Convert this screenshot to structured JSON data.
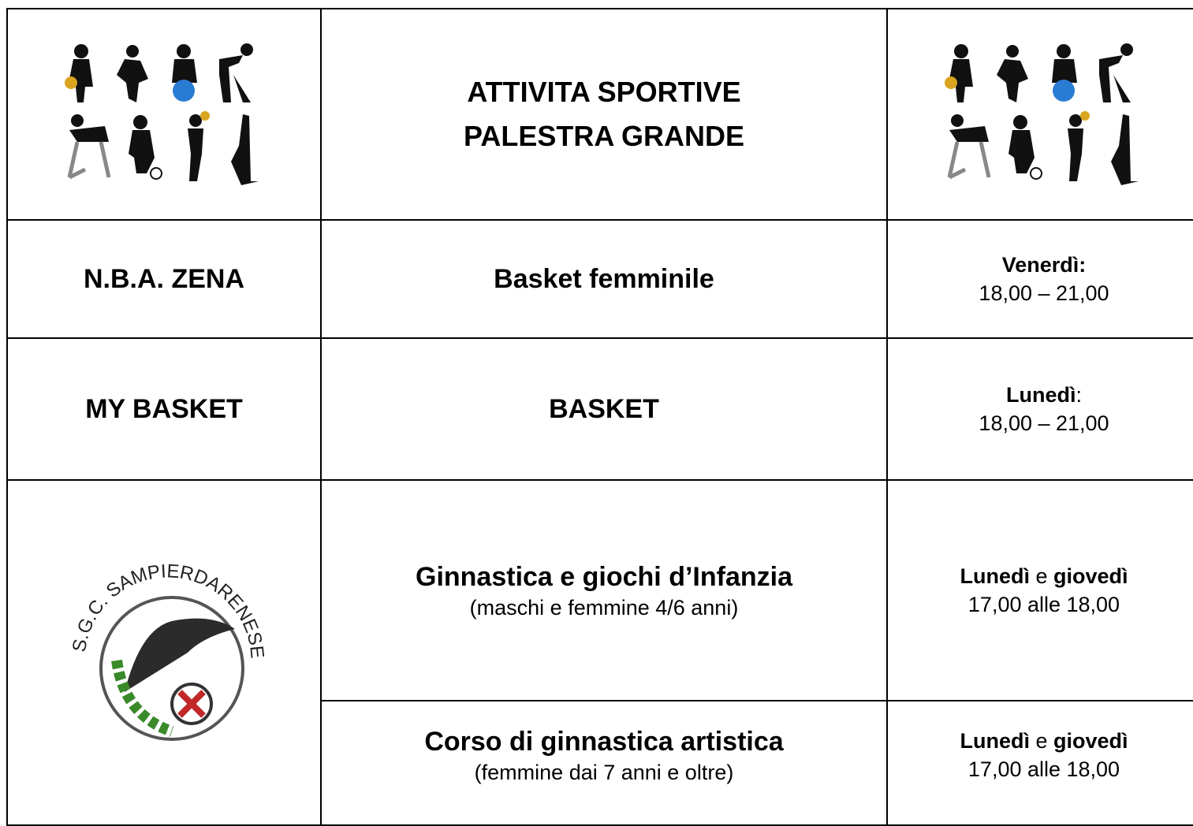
{
  "header": {
    "title_lines": [
      "ATTIVITA SPORTIVE",
      "PALESTRA GRANDE"
    ]
  },
  "logo": {
    "text": "S.G.C. SAMPIERDARENESE"
  },
  "rows": [
    {
      "org": "N.B.A. ZENA",
      "activity": "Basket femminile",
      "schedule": [
        {
          "text": "Venerdì:",
          "bold": true
        }
      ],
      "time": "18,00 – 21,00"
    },
    {
      "org": "MY BASKET",
      "activity": "BASKET",
      "schedule": [
        {
          "text": "Lunedì",
          "bold": true
        },
        {
          "text": ":",
          "bold": false
        }
      ],
      "time": "18,00 – 21,00"
    },
    {
      "activity": "Ginnastica e giochi d’Infanzia",
      "note": "(maschi e femmine 4/6 anni)",
      "schedule": [
        {
          "text": "Lunedì",
          "bold": true
        },
        {
          "text": " e ",
          "bold": false
        },
        {
          "text": "giovedì",
          "bold": true
        }
      ],
      "time": "17,00 alle 18,00"
    },
    {
      "activity": "Corso di ginnastica artistica",
      "note": "(femmine dai 7 anni e oltre)",
      "schedule": [
        {
          "text": "Lunedì",
          "bold": true
        },
        {
          "text": " e ",
          "bold": false
        },
        {
          "text": "giovedì",
          "bold": true
        }
      ],
      "time": "17,00 alle 18,00"
    }
  ]
}
